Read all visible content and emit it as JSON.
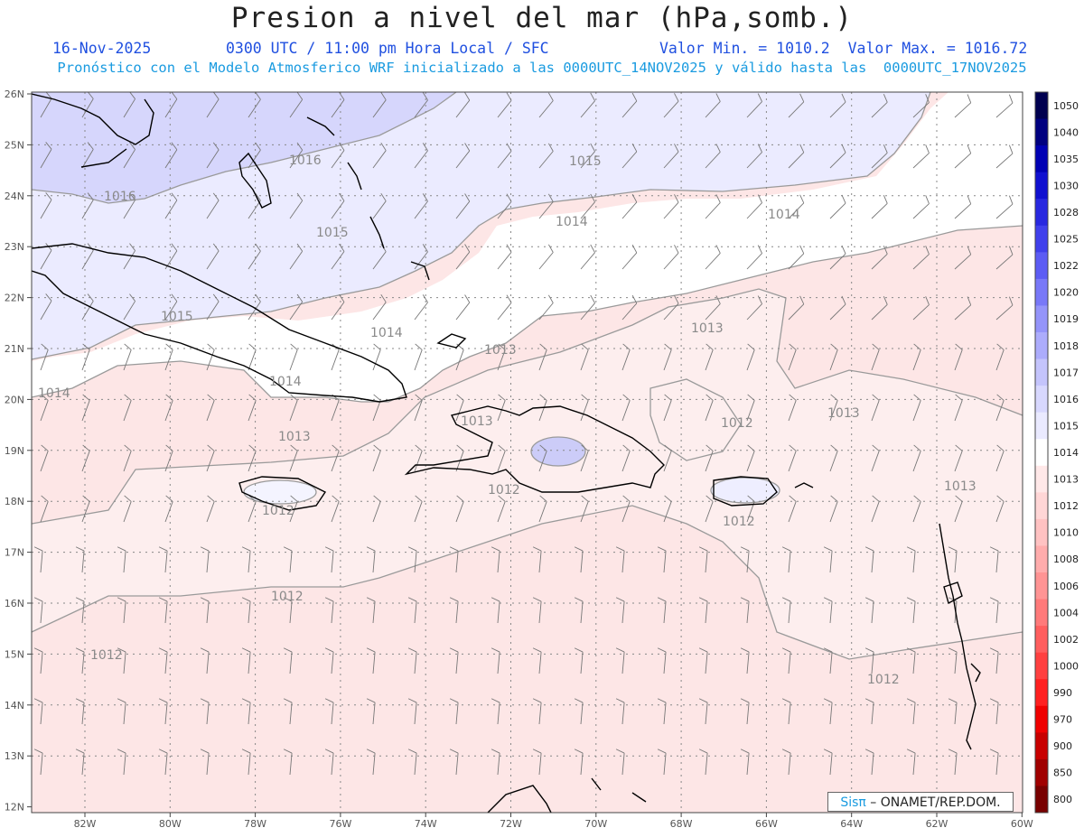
{
  "header": {
    "title": "Presion a nivel del mar (hPa,somb.)",
    "date": "16-Nov-2025",
    "time": "0300 UTC / 11:00 pm Hora Local / SFC",
    "stats": "Valor Min. = 1010.2  Valor Max. = 1016.72",
    "forecast_info": "Pronóstico con el Modelo Atmosferico WRF inicializado a las 0000UTC_14NOV2025 y válido hasta las  0000UTC_17NOV2025"
  },
  "axes": {
    "lat_labels": [
      "26N",
      "25N",
      "24N",
      "23N",
      "22N",
      "21N",
      "20N",
      "19N",
      "18N",
      "17N",
      "16N",
      "15N",
      "14N",
      "13N",
      "12N"
    ],
    "lon_labels": [
      "82W",
      "80W",
      "78W",
      "76W",
      "74W",
      "72W",
      "70W",
      "68W",
      "66W",
      "64W",
      "62W",
      "60W"
    ]
  },
  "contours": [
    {
      "text": "1016"
    },
    {
      "text": "1016"
    },
    {
      "text": "1015"
    },
    {
      "text": "1015"
    },
    {
      "text": "1015"
    },
    {
      "text": "1014"
    },
    {
      "text": "1014"
    },
    {
      "text": "1014"
    },
    {
      "text": "1014"
    },
    {
      "text": "1014"
    },
    {
      "text": "1013"
    },
    {
      "text": "1013"
    },
    {
      "text": "1013"
    },
    {
      "text": "1013"
    },
    {
      "text": "1013"
    },
    {
      "text": "1013"
    },
    {
      "text": "1012"
    },
    {
      "text": "1012"
    },
    {
      "text": "1012"
    },
    {
      "text": "1012"
    },
    {
      "text": "1012"
    },
    {
      "text": "1012"
    },
    {
      "text": "1012"
    }
  ],
  "colorbar": {
    "labels": [
      "1050",
      "1040",
      "1035",
      "1030",
      "1028",
      "1025",
      "1022",
      "1020",
      "1019",
      "1018",
      "1017",
      "1016",
      "1015",
      "1014",
      "1013",
      "1012",
      "1010",
      "1008",
      "1006",
      "1004",
      "1002",
      "1000",
      "990",
      "970",
      "900",
      "850",
      "800"
    ],
    "colors": [
      "#000050",
      "#000080",
      "#0000b4",
      "#1010d0",
      "#2828e0",
      "#4040ec",
      "#5c5cf4",
      "#7878f8",
      "#9494fa",
      "#acacfc",
      "#c4c4fc",
      "#d8d8fe",
      "#eaeaff",
      "#ffffff",
      "#ffe8e8",
      "#ffd6d6",
      "#ffc2c2",
      "#ffacac",
      "#ff9494",
      "#ff7a7a",
      "#ff5e5e",
      "#ff4040",
      "#ff2020",
      "#f00000",
      "#c80000",
      "#a00000",
      "#780000"
    ]
  },
  "credit": {
    "brand": "Sisπ",
    "rest": " – ONAMET/REP.DOM."
  }
}
